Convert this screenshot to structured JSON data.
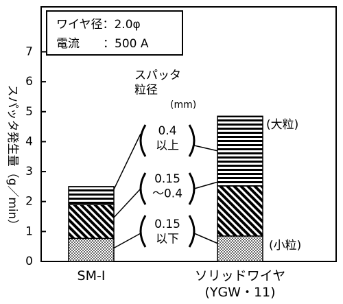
{
  "chart_data": {
    "type": "stacked_bar",
    "y_label": "スパッタ発生量（g／min）",
    "categories": [
      "SM-I",
      "ソリッドワイヤ (YGW・11)"
    ],
    "series": [
      {
        "name": "0.15 以下",
        "color": "#000000",
        "pattern": "dots",
        "values": [
          0.77,
          0.85
        ]
      },
      {
        "name": "0.15 〜0.4",
        "color": "#000000",
        "pattern": "diagonal",
        "values": [
          1.13,
          1.67
        ]
      },
      {
        "name": "0.4 以上",
        "color": "#000000",
        "pattern": "horizontal",
        "values": [
          0.6,
          2.33
        ]
      }
    ],
    "legend_title": "スパッタ 粒径",
    "legend_unit": "(mm)",
    "annotations": [
      "ワイヤ径：2.0φ",
      "電流　　：500 A",
      "(大粒)",
      "(小粒)"
    ],
    "ylim": [
      0,
      8.5
    ],
    "yticks": [
      0,
      1,
      2,
      3,
      4,
      5,
      6,
      7
    ]
  }
}
